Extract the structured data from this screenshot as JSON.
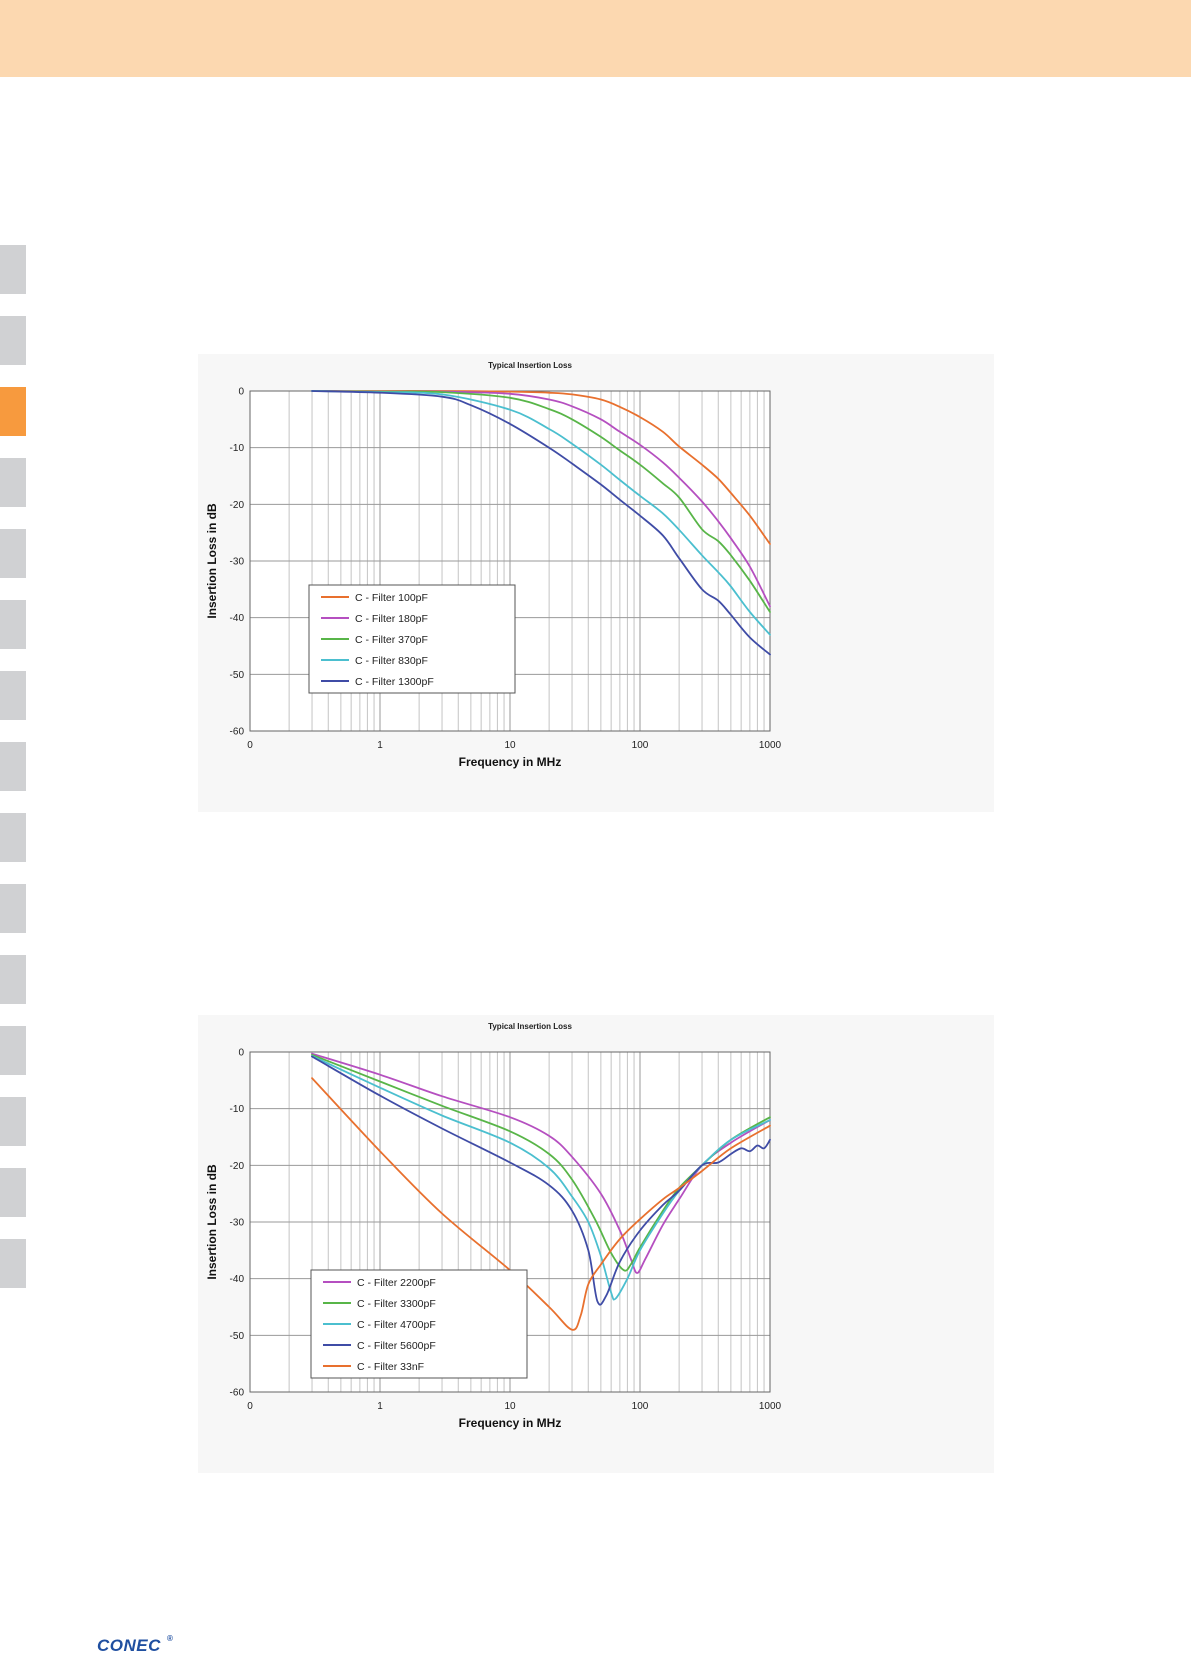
{
  "header": {
    "band_color": "#fcd8b0"
  },
  "side_tabs": {
    "count": 15,
    "active_index": 2,
    "inactive_color": "#d0d1d3",
    "active_color": "#f79a3e"
  },
  "footer": {
    "logo_text": "CONEC",
    "logo_mark": "®"
  },
  "chart_data": [
    {
      "type": "line",
      "title": "Typical Insertion Loss",
      "xlabel": "Frequency in MHz",
      "ylabel": "Insertion Loss in dB",
      "x_scale": "log",
      "xlim": [
        0.1,
        1000
      ],
      "ylim": [
        -60,
        0
      ],
      "x_ticks": [
        "0",
        "1",
        "10",
        "100",
        "1000"
      ],
      "y_ticks": [
        "0",
        "-10",
        "-20",
        "-30",
        "-40",
        "-50",
        "-60"
      ],
      "grid": true,
      "legend_position": "lower-left",
      "series": [
        {
          "name": "C - Filter 100pF",
          "color": "#e8702e",
          "x": [
            0.3,
            1,
            3,
            10,
            20,
            30,
            50,
            70,
            100,
            150,
            200,
            300,
            400,
            500,
            700,
            1000
          ],
          "y": [
            0,
            0,
            0,
            -0.1,
            -0.3,
            -0.6,
            -1.5,
            -2.8,
            -4.6,
            -7.2,
            -9.8,
            -13,
            -15.5,
            -18,
            -22,
            -27
          ]
        },
        {
          "name": "C - Filter 180pF",
          "color": "#b54fc0",
          "x": [
            0.3,
            1,
            3,
            10,
            20,
            30,
            50,
            70,
            100,
            150,
            200,
            300,
            400,
            500,
            700,
            1000
          ],
          "y": [
            0,
            -0.1,
            -0.1,
            -0.5,
            -1.5,
            -2.7,
            -5,
            -7.2,
            -9.5,
            -12.6,
            -15.3,
            -19.5,
            -23,
            -26,
            -31,
            -38
          ]
        },
        {
          "name": "C - Filter 370pF",
          "color": "#58b548",
          "x": [
            0.3,
            1,
            3,
            10,
            20,
            30,
            50,
            70,
            100,
            150,
            200,
            300,
            400,
            500,
            700,
            1000
          ],
          "y": [
            0,
            -0.1,
            -0.2,
            -1.2,
            -3.2,
            -5,
            -8.1,
            -10.5,
            -13,
            -16.3,
            -18.8,
            -24.4,
            -26.5,
            -29,
            -33.5,
            -39
          ]
        },
        {
          "name": "C - Filter 830pF",
          "color": "#4bbfcf",
          "x": [
            0.3,
            1,
            3,
            10,
            20,
            30,
            50,
            70,
            100,
            150,
            200,
            300,
            400,
            500,
            700,
            1000
          ],
          "y": [
            0,
            -0.2,
            -0.6,
            -3.3,
            -6.7,
            -9.3,
            -13,
            -15.7,
            -18.5,
            -21.6,
            -24.5,
            -29,
            -32,
            -34.5,
            -39,
            -43
          ]
        },
        {
          "name": "C - Filter 1300pF",
          "color": "#3f4ca6",
          "x": [
            0.3,
            1,
            3,
            5,
            10,
            20,
            30,
            50,
            70,
            100,
            150,
            200,
            300,
            400,
            500,
            700,
            1000
          ],
          "y": [
            0,
            -0.3,
            -1,
            -2.5,
            -5.8,
            -10,
            -12.8,
            -16.5,
            -19.2,
            -22,
            -25.5,
            -29.5,
            -35,
            -37,
            -39.5,
            -43.5,
            -46.5
          ]
        }
      ]
    },
    {
      "type": "line",
      "title": "Typical Insertion Loss",
      "xlabel": "Frequency in MHz",
      "ylabel": "Insertion Loss in dB",
      "x_scale": "log",
      "xlim": [
        0.1,
        1000
      ],
      "ylim": [
        -60,
        0
      ],
      "x_ticks": [
        "0",
        "1",
        "10",
        "100",
        "1000"
      ],
      "y_ticks": [
        "0",
        "-10",
        "-20",
        "-30",
        "-40",
        "-50",
        "-60"
      ],
      "grid": true,
      "legend_position": "center-left",
      "series": [
        {
          "name": "C - Filter 2200pF",
          "color": "#b54fc0",
          "x": [
            0.3,
            1,
            3,
            10,
            20,
            30,
            50,
            70,
            85,
            95,
            110,
            150,
            200,
            300,
            500,
            1000
          ],
          "y": [
            -0.3,
            -4,
            -7.8,
            -11.5,
            -14.8,
            -18.5,
            -25,
            -31.5,
            -36.5,
            -39,
            -36.5,
            -30.5,
            -26,
            -20,
            -16,
            -12
          ]
        },
        {
          "name": "C - Filter 3300pF",
          "color": "#58b548",
          "x": [
            0.3,
            1,
            3,
            10,
            20,
            30,
            45,
            60,
            75,
            85,
            100,
            150,
            200,
            300,
            500,
            1000
          ],
          "y": [
            -0.5,
            -5.2,
            -9.5,
            -14,
            -18,
            -22.5,
            -29.5,
            -35.5,
            -38.5,
            -37.5,
            -34.5,
            -28,
            -24,
            -20,
            -15.5,
            -11.5
          ]
        },
        {
          "name": "C - Filter 4700pF",
          "color": "#4bbfcf",
          "x": [
            0.3,
            1,
            3,
            10,
            20,
            30,
            40,
            50,
            60,
            65,
            80,
            100,
            150,
            200,
            300,
            500,
            1000
          ],
          "y": [
            -0.7,
            -6.3,
            -11.2,
            -16,
            -20.5,
            -25.5,
            -30,
            -36,
            -42.5,
            -43.5,
            -40,
            -35,
            -28.5,
            -24.5,
            -20,
            -15.5,
            -12
          ]
        },
        {
          "name": "C - Filter 5600pF",
          "color": "#3f4ca6",
          "x": [
            0.3,
            1,
            3,
            10,
            20,
            30,
            40,
            47,
            55,
            70,
            100,
            150,
            200,
            300,
            400,
            500,
            600,
            700,
            800,
            900,
            1000
          ],
          "y": [
            -0.8,
            -7.7,
            -13.5,
            -19.5,
            -23.5,
            -28,
            -35,
            -44,
            -43,
            -37,
            -31.5,
            -27,
            -24.5,
            -20,
            -19.5,
            -18,
            -17,
            -17.5,
            -16.5,
            -17,
            -15.5
          ]
        },
        {
          "name": "C - Filter 33nF",
          "color": "#e8702e",
          "x": [
            0.3,
            1,
            3,
            10,
            20,
            30,
            35,
            40,
            50,
            70,
            100,
            150,
            200,
            300,
            500,
            1000
          ],
          "y": [
            -4.6,
            -17.5,
            -28.5,
            -38.5,
            -45,
            -49,
            -46.5,
            -41,
            -37.5,
            -33,
            -29.5,
            -26,
            -24,
            -21,
            -17,
            -13
          ]
        }
      ]
    }
  ]
}
